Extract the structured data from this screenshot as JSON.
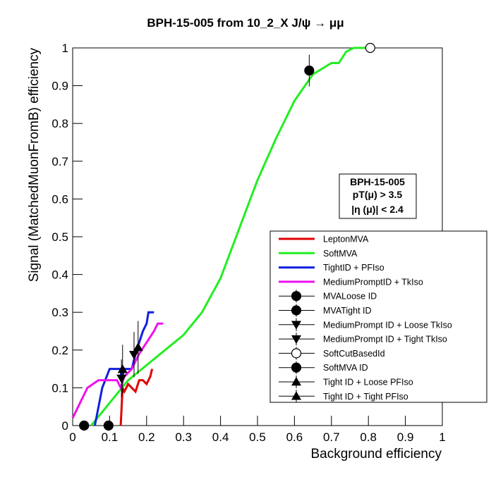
{
  "chart_data": {
    "type": "line",
    "title": "BPH-15-005 from 10_2_X J/ψ → μμ",
    "x_label": "Background efficiency",
    "y_label": "Signal (MatchedMuonFromB) efficiency",
    "annotation": [
      "BPH-15-005",
      "pT(μ) > 3.5",
      "|η (μ)| < 2.4"
    ],
    "xlim": [
      0,
      1
    ],
    "ylim": [
      0,
      1
    ],
    "xticks": [
      0,
      0.1,
      0.2,
      0.3,
      0.4,
      0.5,
      0.6,
      0.7,
      0.8,
      0.9,
      1
    ],
    "yticks": [
      0,
      0.1,
      0.2,
      0.3,
      0.4,
      0.5,
      0.6,
      0.7,
      0.8,
      0.9,
      1
    ],
    "grid": false,
    "legend": "lower right",
    "series": [
      {
        "name": "LeptonMVA",
        "color": "#e00000",
        "x": [
          0.13,
          0.135,
          0.14,
          0.15,
          0.16,
          0.17,
          0.18,
          0.19,
          0.2,
          0.21,
          0.215
        ],
        "y": [
          0,
          0.1,
          0.09,
          0.11,
          0.1,
          0.09,
          0.12,
          0.12,
          0.11,
          0.13,
          0.15
        ]
      },
      {
        "name": "SoftMVA",
        "color": "#22ee22",
        "x": [
          0.05,
          0.1,
          0.15,
          0.2,
          0.25,
          0.3,
          0.35,
          0.4,
          0.45,
          0.5,
          0.55,
          0.6,
          0.65,
          0.7,
          0.72,
          0.74,
          0.76,
          0.8
        ],
        "y": [
          0,
          0.06,
          0.12,
          0.16,
          0.2,
          0.24,
          0.3,
          0.39,
          0.52,
          0.65,
          0.76,
          0.86,
          0.93,
          0.96,
          0.96,
          0.99,
          1,
          1
        ]
      },
      {
        "name": "TightID + PFIso",
        "color": "#1020dd",
        "x": [
          0.06,
          0.08,
          0.1,
          0.13,
          0.132,
          0.14,
          0.16,
          0.17,
          0.19,
          0.2,
          0.205,
          0.22
        ],
        "y": [
          0,
          0.1,
          0.15,
          0.15,
          0.12,
          0.15,
          0.15,
          0.19,
          0.25,
          0.27,
          0.3,
          0.3
        ]
      },
      {
        "name": "MediumPromptID + TkIso",
        "color": "#ee11ee",
        "x": [
          0,
          0.02,
          0.04,
          0.07,
          0.1,
          0.12,
          0.13,
          0.14,
          0.16,
          0.18,
          0.2,
          0.22,
          0.23,
          0.245
        ],
        "y": [
          0.02,
          0.06,
          0.1,
          0.12,
          0.12,
          0.12,
          0.1,
          0.13,
          0.15,
          0.19,
          0.22,
          0.25,
          0.27,
          0.27
        ]
      },
      {
        "name": "MVALoose ID",
        "color": "#000000",
        "marker": "circle",
        "x": [
          0.031
        ],
        "y": [
          0
        ]
      },
      {
        "name": "MVATight ID",
        "color": "#000000",
        "marker": "circle",
        "x": [
          0.097
        ],
        "y": [
          0
        ]
      },
      {
        "name": "MediumPrompt ID + Loose TkIso",
        "color": "#000000",
        "marker": "triangle-down",
        "x": [
          0.132
        ],
        "y": [
          0.125
        ],
        "err": [
          0.05
        ]
      },
      {
        "name": "MediumPrompt ID + Tight TkIso",
        "color": "#000000",
        "marker": "triangle-down",
        "x": [
          0.166
        ],
        "y": [
          0.188
        ],
        "err": [
          0.06
        ]
      },
      {
        "name": "SoftCutBasedId",
        "color": "#000000",
        "marker": "open-circle",
        "x": [
          0.805
        ],
        "y": [
          1
        ]
      },
      {
        "name": "SoftMVA ID",
        "color": "#000000",
        "marker": "circle",
        "x": [
          0.64
        ],
        "y": [
          0.94
        ],
        "err": [
          0.042
        ]
      },
      {
        "name": "Tight ID + Loose PFIso",
        "color": "#000000",
        "marker": "triangle-up",
        "x": [
          0.135
        ],
        "y": [
          0.149
        ],
        "err": [
          0.065
        ]
      },
      {
        "name": "Tight ID + Tight PFIso",
        "color": "#000000",
        "marker": "triangle-up",
        "x": [
          0.177
        ],
        "y": [
          0.207
        ],
        "err": [
          0.07
        ]
      }
    ]
  }
}
